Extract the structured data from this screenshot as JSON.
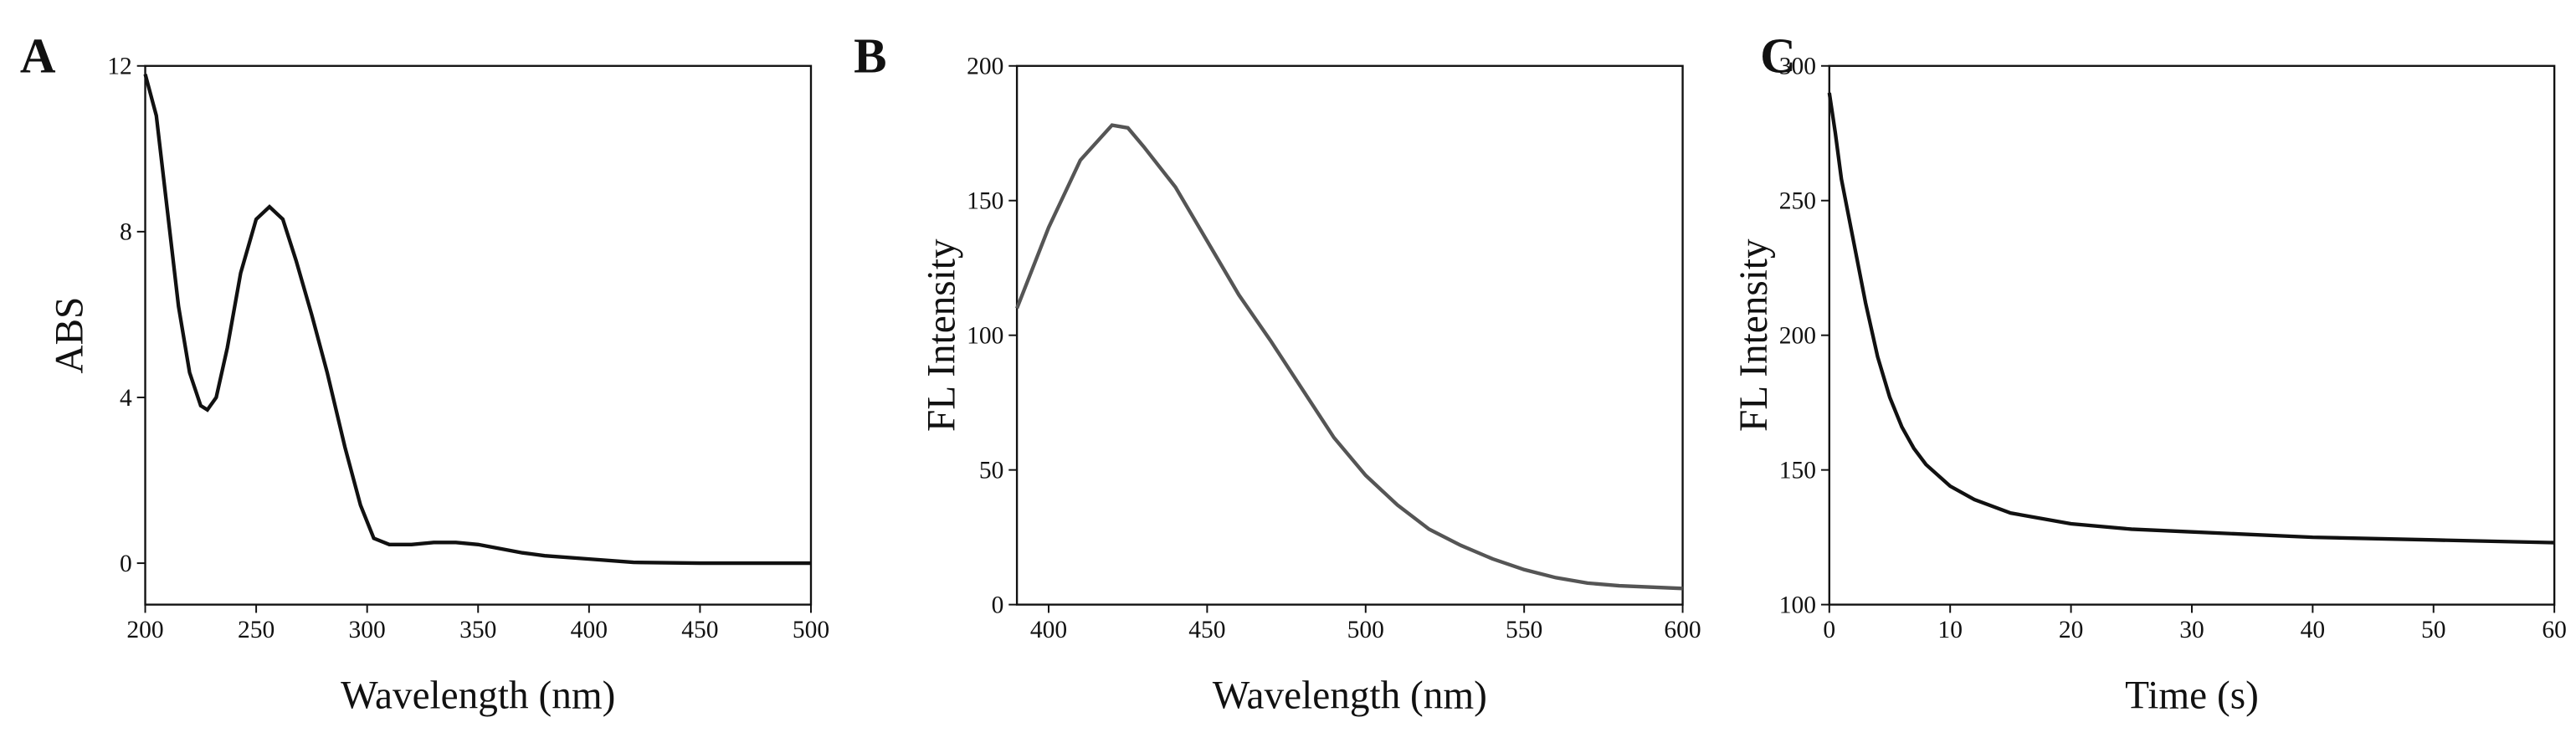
{
  "chart_data": [
    {
      "type": "line",
      "panel": "A",
      "xlabel": "Wavelength (nm)",
      "ylabel": "ABS",
      "color": "#111111",
      "x": [
        200,
        205,
        210,
        215,
        220,
        225,
        228,
        232,
        237,
        243,
        250,
        256,
        262,
        268,
        275,
        282,
        290,
        297,
        303,
        310,
        320,
        330,
        340,
        350,
        360,
        370,
        380,
        400,
        420,
        450,
        500
      ],
      "values": [
        11.8,
        10.8,
        8.5,
        6.2,
        4.6,
        3.8,
        3.7,
        4.0,
        5.2,
        7.0,
        8.3,
        8.6,
        8.3,
        7.3,
        6.0,
        4.6,
        2.8,
        1.4,
        0.6,
        0.45,
        0.45,
        0.5,
        0.5,
        0.45,
        0.35,
        0.25,
        0.18,
        0.1,
        0.02,
        0,
        0
      ],
      "xlim": [
        200,
        500
      ],
      "xticks": [
        200,
        250,
        300,
        350,
        400,
        450,
        500
      ],
      "ylim": [
        -1,
        12
      ],
      "yticks": [
        0,
        4,
        8,
        12
      ]
    },
    {
      "type": "line",
      "panel": "B",
      "xlabel": "Wavelength (nm)",
      "ylabel": "FL Intensity",
      "color": "#555555",
      "x": [
        390,
        400,
        410,
        420,
        425,
        430,
        440,
        450,
        460,
        470,
        480,
        490,
        500,
        510,
        520,
        530,
        540,
        550,
        560,
        570,
        580,
        590,
        600
      ],
      "values": [
        110,
        140,
        165,
        178,
        177,
        170,
        155,
        135,
        115,
        98,
        80,
        62,
        48,
        37,
        28,
        22,
        17,
        13,
        10,
        8,
        7,
        6.5,
        6
      ],
      "xlim": [
        390,
        600
      ],
      "xticks": [
        400,
        450,
        500,
        550,
        600
      ],
      "ylim": [
        0,
        200
      ],
      "yticks": [
        0,
        50,
        100,
        150,
        200
      ]
    },
    {
      "type": "line",
      "panel": "C",
      "xlabel": "Time (s)",
      "ylabel": "FL Intensity",
      "color": "#111111",
      "x": [
        0,
        0.5,
        1,
        2,
        3,
        4,
        5,
        6,
        7,
        8,
        10,
        12,
        15,
        20,
        25,
        30,
        40,
        50,
        60
      ],
      "values": [
        290,
        275,
        258,
        235,
        212,
        192,
        177,
        166,
        158,
        152,
        144,
        139,
        134,
        130,
        128,
        127,
        125,
        124,
        123
      ],
      "xlim": [
        0,
        60
      ],
      "xticks": [
        0,
        10,
        20,
        30,
        40,
        50,
        60
      ],
      "ylim": [
        100,
        300
      ],
      "yticks": [
        100,
        150,
        200,
        250,
        300
      ]
    }
  ]
}
